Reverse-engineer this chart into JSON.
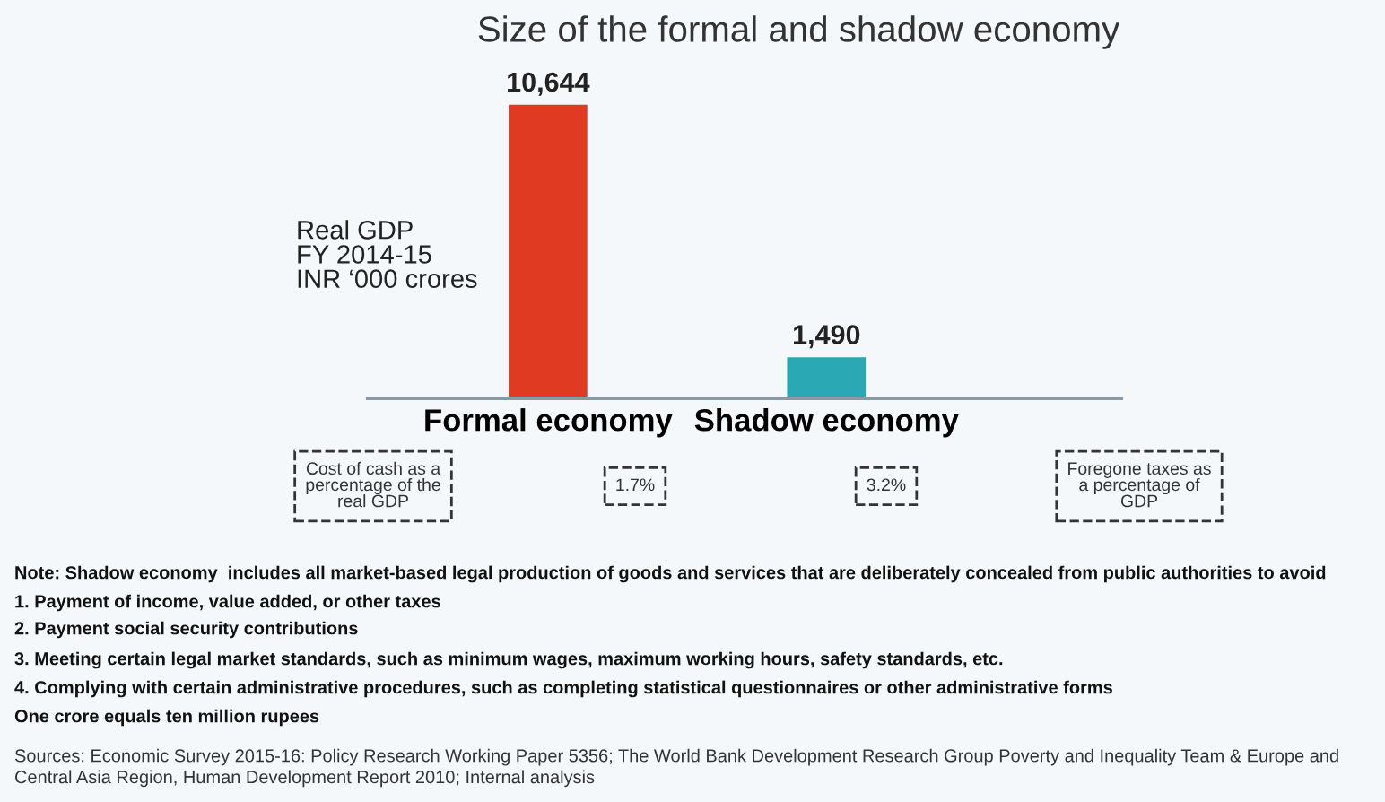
{
  "chart_data": {
    "type": "bar",
    "title": "Size of the formal and shadow economy",
    "ylabel": "Real GDP\nFY 2014-15\nINR ‘000 crores",
    "categories": [
      "Formal economy",
      "Shadow economy"
    ],
    "values": [
      10644,
      1490
    ],
    "colors": [
      "#e03a22",
      "#2aa9b5"
    ],
    "value_labels": [
      "10,644",
      "1,490"
    ],
    "grid": false,
    "legend": false,
    "annotations": [
      "Cost of cash as a\npercentage of the\nreal GDP",
      "1.7%",
      "3.2%",
      "Foregone taxes as\na percentage of\nGDP",
      "Note: Shadow economy  includes all market-based legal production of goods and services that are deliberately concealed from public authorities to avoid",
      "1. Payment of income, value added, or other taxes",
      "2. Payment social security contributions",
      "3. Meeting certain legal market standards, such as minimum wages, maximum working hours, safety standards, etc.",
      "4. Complying with certain administrative procedures, such as completing statistical questionnaires or other administrative forms",
      "One crore equals ten million rupees",
      "Sources: Economic Survey 2015-16: Policy Research Working Paper 5356; The World Bank Development Research Group Poverty and Inequality Team & Europe and\nCentral Asia Region, Human Development Report 2010; Internal analysis"
    ]
  }
}
